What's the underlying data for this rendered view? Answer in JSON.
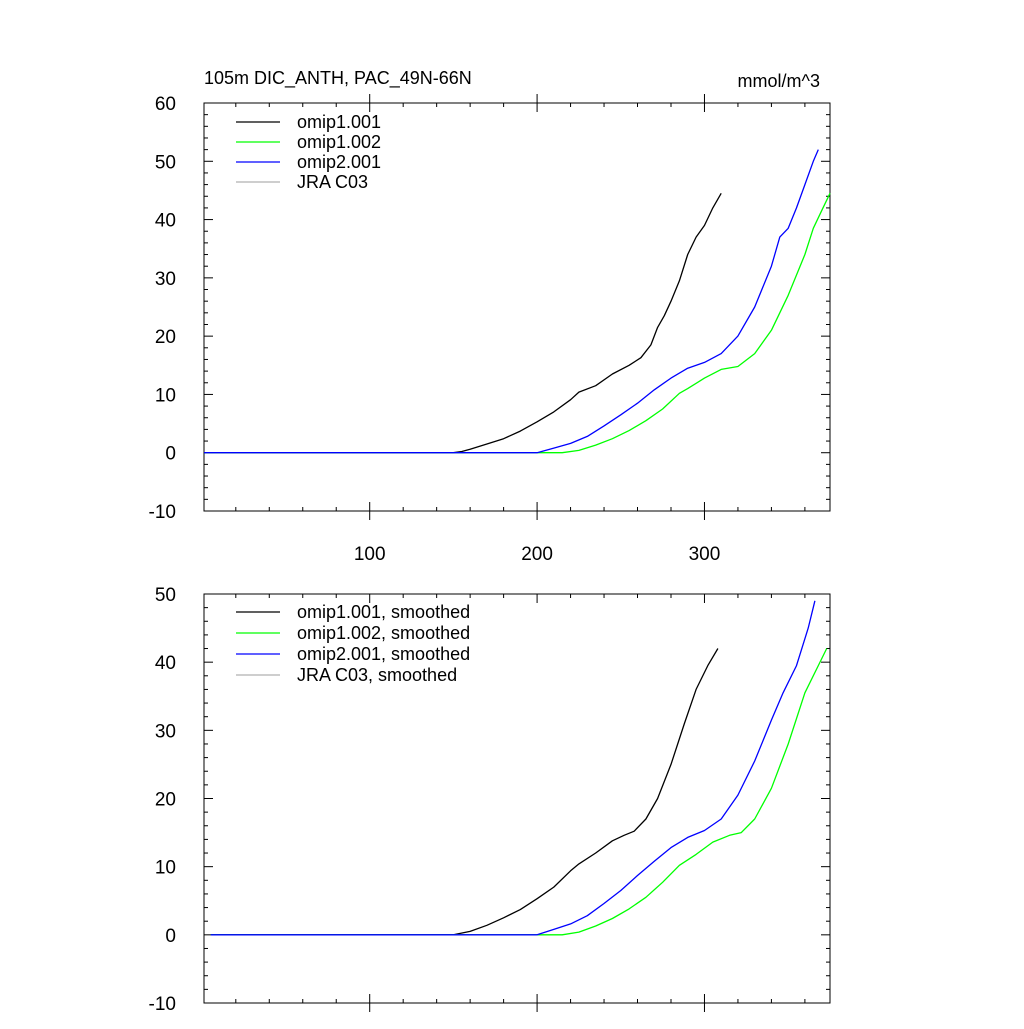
{
  "chart_data": [
    {
      "type": "line",
      "title": "105m DIC_ANTH, PAC_49N-66N",
      "units": "mmol/m^3",
      "xlim": [
        1,
        375
      ],
      "ylim": [
        -10,
        60
      ],
      "x_ticks": [
        100,
        200,
        300
      ],
      "x_tick_labels": [
        "100",
        "200",
        "300"
      ],
      "y_ticks": [
        -10,
        0,
        10,
        20,
        30,
        40,
        50,
        60
      ],
      "y_tick_labels": [
        "-10",
        "0",
        "10",
        "20",
        "30",
        "40",
        "50",
        "60"
      ],
      "legend": {
        "placement": "top-left",
        "entries": [
          "omip1.001",
          "omip1.002",
          "omip2.001",
          "JRA C03"
        ]
      },
      "series": [
        {
          "name": "omip1.001",
          "color": "#000000",
          "points": [
            [
              1,
              0
            ],
            [
              150,
              0
            ],
            [
              155,
              0.2
            ],
            [
              160,
              0.6
            ],
            [
              170,
              1.5
            ],
            [
              180,
              2.4
            ],
            [
              190,
              3.7
            ],
            [
              200,
              5.3
            ],
            [
              210,
              7.0
            ],
            [
              220,
              9.1
            ],
            [
              225,
              10.4
            ],
            [
              235,
              11.5
            ],
            [
              245,
              13.5
            ],
            [
              255,
              15.0
            ],
            [
              262,
              16.3
            ],
            [
              268,
              18.5
            ],
            [
              272,
              21.5
            ],
            [
              276,
              23.5
            ],
            [
              280,
              26.0
            ],
            [
              285,
              29.5
            ],
            [
              290,
              34.0
            ],
            [
              295,
              37.0
            ],
            [
              300,
              39.0
            ],
            [
              305,
              42.0
            ],
            [
              310,
              44.5
            ]
          ]
        },
        {
          "name": "omip1.002",
          "color": "#00ff00",
          "points": [
            [
              1,
              0
            ],
            [
              215,
              0
            ],
            [
              225,
              0.4
            ],
            [
              235,
              1.3
            ],
            [
              245,
              2.4
            ],
            [
              255,
              3.8
            ],
            [
              265,
              5.5
            ],
            [
              275,
              7.5
            ],
            [
              285,
              10.2
            ],
            [
              290,
              11.0
            ],
            [
              300,
              12.8
            ],
            [
              310,
              14.3
            ],
            [
              320,
              14.8
            ],
            [
              330,
              17.0
            ],
            [
              340,
              21.0
            ],
            [
              350,
              27.0
            ],
            [
              360,
              34.0
            ],
            [
              365,
              38.5
            ],
            [
              370,
              41.5
            ],
            [
              375,
              44.5
            ]
          ]
        },
        {
          "name": "omip2.001",
          "color": "#0000ff",
          "points": [
            [
              1,
              0
            ],
            [
              200,
              0
            ],
            [
              210,
              0.8
            ],
            [
              220,
              1.6
            ],
            [
              230,
              2.8
            ],
            [
              240,
              4.6
            ],
            [
              250,
              6.5
            ],
            [
              260,
              8.5
            ],
            [
              270,
              10.8
            ],
            [
              280,
              12.8
            ],
            [
              290,
              14.5
            ],
            [
              300,
              15.5
            ],
            [
              310,
              17.0
            ],
            [
              320,
              20.0
            ],
            [
              330,
              25.0
            ],
            [
              340,
              32.0
            ],
            [
              345,
              37.0
            ],
            [
              350,
              38.5
            ],
            [
              355,
              42.0
            ],
            [
              360,
              46.0
            ],
            [
              365,
              50.0
            ],
            [
              368,
              52.0
            ]
          ]
        },
        {
          "name": "JRA C03",
          "color": "#b0b0b0",
          "points": []
        }
      ]
    },
    {
      "type": "line",
      "title": "",
      "xlim": [
        1,
        375
      ],
      "ylim": [
        -10,
        50
      ],
      "x_ticks": [
        100,
        200,
        300
      ],
      "y_ticks": [
        -10,
        0,
        10,
        20,
        30,
        40,
        50
      ],
      "y_tick_labels": [
        "-10",
        "0",
        "10",
        "20",
        "30",
        "40",
        "50"
      ],
      "legend": {
        "placement": "top-left",
        "entries": [
          "omip1.001, smoothed",
          "omip1.002, smoothed",
          "omip2.001, smoothed",
          "JRA C03, smoothed"
        ]
      },
      "series": [
        {
          "name": "omip1.001, smoothed",
          "color": "#000000",
          "points": [
            [
              5,
              0
            ],
            [
              150,
              0
            ],
            [
              160,
              0.5
            ],
            [
              170,
              1.4
            ],
            [
              180,
              2.5
            ],
            [
              190,
              3.7
            ],
            [
              200,
              5.3
            ],
            [
              210,
              7.0
            ],
            [
              220,
              9.4
            ],
            [
              225,
              10.4
            ],
            [
              235,
              12.0
            ],
            [
              245,
              13.8
            ],
            [
              252,
              14.6
            ],
            [
              258,
              15.2
            ],
            [
              265,
              17.0
            ],
            [
              272,
              20.0
            ],
            [
              280,
              25.0
            ],
            [
              288,
              31.0
            ],
            [
              295,
              36.0
            ],
            [
              302,
              39.5
            ],
            [
              308,
              42.0
            ]
          ]
        },
        {
          "name": "omip1.002, smoothed",
          "color": "#00ff00",
          "points": [
            [
              5,
              0
            ],
            [
              215,
              0
            ],
            [
              225,
              0.4
            ],
            [
              235,
              1.3
            ],
            [
              245,
              2.4
            ],
            [
              255,
              3.8
            ],
            [
              265,
              5.5
            ],
            [
              275,
              7.7
            ],
            [
              285,
              10.2
            ],
            [
              295,
              11.8
            ],
            [
              305,
              13.6
            ],
            [
              315,
              14.6
            ],
            [
              322,
              15.0
            ],
            [
              330,
              17.0
            ],
            [
              340,
              21.5
            ],
            [
              350,
              28.0
            ],
            [
              360,
              35.5
            ],
            [
              368,
              39.5
            ],
            [
              373,
              42.0
            ]
          ]
        },
        {
          "name": "omip2.001, smoothed",
          "color": "#0000ff",
          "points": [
            [
              5,
              0
            ],
            [
              200,
              0
            ],
            [
              210,
              0.8
            ],
            [
              220,
              1.6
            ],
            [
              230,
              2.8
            ],
            [
              240,
              4.6
            ],
            [
              250,
              6.5
            ],
            [
              260,
              8.7
            ],
            [
              270,
              10.8
            ],
            [
              280,
              12.8
            ],
            [
              290,
              14.3
            ],
            [
              300,
              15.3
            ],
            [
              310,
              17.0
            ],
            [
              320,
              20.5
            ],
            [
              330,
              25.5
            ],
            [
              340,
              31.5
            ],
            [
              347,
              35.5
            ],
            [
              355,
              39.5
            ],
            [
              362,
              45.0
            ],
            [
              366,
              49.0
            ]
          ]
        },
        {
          "name": "JRA C03, smoothed",
          "color": "#b0b0b0",
          "points": []
        }
      ]
    }
  ]
}
